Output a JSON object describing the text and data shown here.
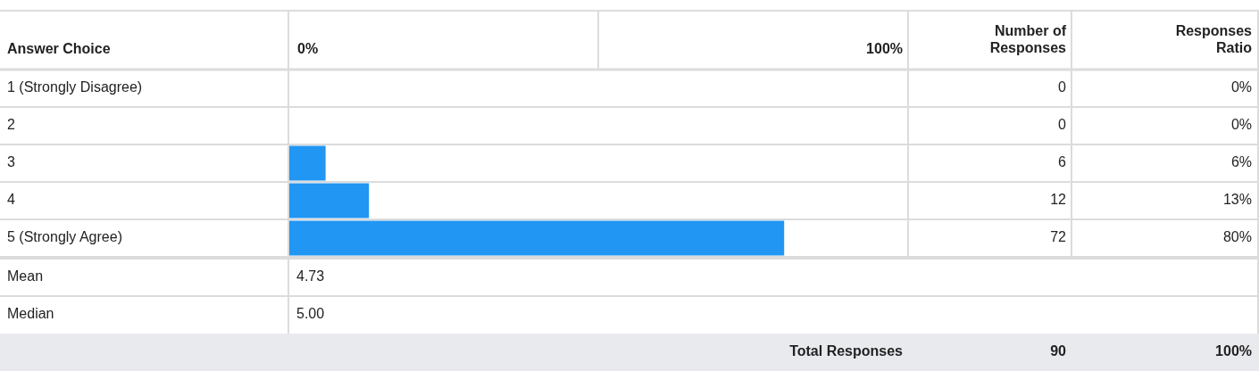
{
  "chart_data": {
    "type": "bar",
    "orientation": "horizontal",
    "ylabel": "Answer Choice",
    "categories": [
      "1 (Strongly Disagree)",
      "2",
      "3",
      "4",
      "5 (Strongly Agree)"
    ],
    "values": [
      0,
      0,
      6,
      13,
      80
    ],
    "color": "#2196f3",
    "xlim": [
      0,
      100
    ],
    "value_labels": [
      "0%",
      "0%",
      "6%",
      "13%",
      "80%"
    ],
    "annotations": [
      "Number of Responses",
      "Responses Ratio",
      "0",
      "0",
      "6",
      "12",
      "72",
      "Mean",
      "4.73",
      "Median",
      "5.00",
      "Total Responses",
      "90",
      "100%",
      "0%",
      "100%"
    ]
  }
}
